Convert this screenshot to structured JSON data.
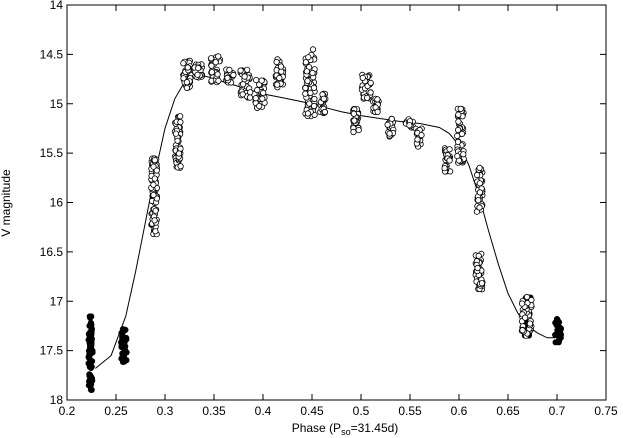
{
  "chart_data": {
    "type": "scatter",
    "xlabel_main": "Phase (P",
    "xlabel_sub": "so",
    "xlabel_tail": "=31.45d)",
    "ylabel": "V magnitude",
    "xlim": [
      0.2,
      0.75
    ],
    "ylim": [
      14,
      18
    ],
    "y_inverted": true,
    "grid": false,
    "legend": "none",
    "x_ticks": [
      "0.2",
      "0.25",
      "0.3",
      "0.35",
      "0.4",
      "0.45",
      "0.5",
      "0.55",
      "0.6",
      "0.65",
      "0.7",
      "0.75"
    ],
    "y_ticks": [
      "14",
      "14.5",
      "15",
      "15.5",
      "16",
      "16.5",
      "17",
      "17.5",
      "18"
    ],
    "series": [
      {
        "marker": "filled-circle",
        "color": "#000000",
        "clusters": [
          {
            "x": [
              0.222,
              0.226
            ],
            "y": [
              17.15,
              17.9
            ]
          },
          {
            "x": [
              0.255,
              0.261
            ],
            "y": [
              17.28,
              17.62
            ]
          },
          {
            "x": [
              0.667,
              0.673
            ],
            "y": [
              16.95,
              17.35
            ]
          },
          {
            "x": [
              0.698,
              0.704
            ],
            "y": [
              17.18,
              17.42
            ]
          }
        ]
      },
      {
        "marker": "open-circle",
        "color": "#000000",
        "clusters": [
          {
            "x": [
              0.286,
              0.292
            ],
            "y": [
              15.55,
              16.35
            ]
          },
          {
            "x": [
              0.31,
              0.316
            ],
            "y": [
              15.12,
              15.65
            ]
          },
          {
            "x": [
              0.318,
              0.326
            ],
            "y": [
              14.55,
              14.85
            ]
          },
          {
            "x": [
              0.33,
              0.338
            ],
            "y": [
              14.6,
              14.75
            ]
          },
          {
            "x": [
              0.347,
              0.357
            ],
            "y": [
              14.52,
              14.8
            ]
          },
          {
            "x": [
              0.362,
              0.37
            ],
            "y": [
              14.65,
              14.8
            ]
          },
          {
            "x": [
              0.377,
              0.387
            ],
            "y": [
              14.65,
              14.95
            ]
          },
          {
            "x": [
              0.392,
              0.402
            ],
            "y": [
              14.75,
              15.05
            ]
          },
          {
            "x": [
              0.413,
              0.421
            ],
            "y": [
              14.55,
              14.85
            ]
          },
          {
            "x": [
              0.443,
              0.453
            ],
            "y": [
              14.5,
              15.15
            ]
          },
          {
            "x": [
              0.458,
              0.464
            ],
            "y": [
              14.9,
              15.1
            ]
          },
          {
            "x": [
              0.492,
              0.498
            ],
            "y": [
              15.05,
              15.3
            ]
          },
          {
            "x": [
              0.5,
              0.51
            ],
            "y": [
              14.7,
              14.95
            ]
          },
          {
            "x": [
              0.512,
              0.518
            ],
            "y": [
              14.95,
              15.1
            ]
          },
          {
            "x": [
              0.527,
              0.533
            ],
            "y": [
              15.15,
              15.35
            ]
          },
          {
            "x": [
              0.545,
              0.553
            ],
            "y": [
              15.15,
              15.25
            ]
          },
          {
            "x": [
              0.556,
              0.562
            ],
            "y": [
              15.25,
              15.45
            ]
          },
          {
            "x": [
              0.585,
              0.591
            ],
            "y": [
              15.45,
              15.72
            ]
          },
          {
            "x": [
              0.598,
              0.605
            ],
            "y": [
              15.05,
              15.6
            ]
          },
          {
            "x": [
              0.618,
              0.624
            ],
            "y": [
              15.65,
              16.1
            ]
          },
          {
            "x": [
              0.617,
              0.624
            ],
            "y": [
              16.5,
              16.9
            ]
          },
          {
            "x": [
              0.664,
              0.674
            ],
            "y": [
              16.95,
              17.35
            ]
          }
        ],
        "outliers": [
          {
            "x": 0.451,
            "y": 14.45
          },
          {
            "x": 0.621,
            "y": 15.65
          }
        ]
      }
    ],
    "fit_curve": {
      "style": "solid-line",
      "x": [
        0.229,
        0.245,
        0.26,
        0.27,
        0.28,
        0.29,
        0.3,
        0.31,
        0.32,
        0.33,
        0.34,
        0.35,
        0.36,
        0.38,
        0.4,
        0.42,
        0.44,
        0.46,
        0.48,
        0.5,
        0.52,
        0.54,
        0.56,
        0.58,
        0.59,
        0.6,
        0.61,
        0.62,
        0.63,
        0.64,
        0.65,
        0.66,
        0.67,
        0.68,
        0.69,
        0.698
      ],
      "y": [
        17.68,
        17.55,
        17.15,
        16.7,
        16.2,
        15.7,
        15.25,
        14.95,
        14.78,
        14.72,
        14.72,
        14.74,
        14.78,
        14.84,
        14.9,
        14.94,
        14.98,
        15.03,
        15.08,
        15.12,
        15.15,
        15.18,
        15.2,
        15.24,
        15.3,
        15.42,
        15.62,
        15.92,
        16.28,
        16.62,
        16.92,
        17.12,
        17.25,
        17.32,
        17.37,
        17.37
      ]
    }
  }
}
